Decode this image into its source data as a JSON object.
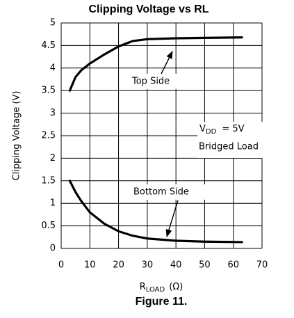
{
  "chart_data": {
    "type": "line",
    "title": "Clipping Voltage vs RL",
    "x_label": {
      "main": "R",
      "sub": "LOAD",
      "unit": "(Ω)"
    },
    "y_label": "Clipping Voltage (V)",
    "caption": "Figure 11.",
    "annotations": {
      "supply_main": "V",
      "supply_sub": "DD",
      "supply_rest": "= 5V",
      "load": "Bridged Load"
    },
    "xlim": [
      0,
      70
    ],
    "xticks": [
      0,
      10,
      20,
      30,
      40,
      50,
      60,
      70
    ],
    "ylim": [
      0,
      5
    ],
    "yticks": [
      0,
      0.5,
      1,
      1.5,
      2,
      2.5,
      3,
      3.5,
      4,
      4.5,
      5
    ],
    "grid": true,
    "series": [
      {
        "name": "Top Side",
        "color": "#000000",
        "x": [
          3,
          5,
          7,
          10,
          15,
          20,
          25,
          30,
          40,
          50,
          63
        ],
        "values": [
          3.5,
          3.8,
          3.95,
          4.1,
          4.3,
          4.48,
          4.6,
          4.64,
          4.66,
          4.67,
          4.68
        ]
      },
      {
        "name": "Bottom Side",
        "color": "#000000",
        "x": [
          3,
          5,
          7,
          10,
          15,
          20,
          25,
          30,
          40,
          50,
          63
        ],
        "values": [
          1.5,
          1.25,
          1.05,
          0.8,
          0.55,
          0.38,
          0.28,
          0.22,
          0.17,
          0.15,
          0.14
        ]
      }
    ]
  }
}
